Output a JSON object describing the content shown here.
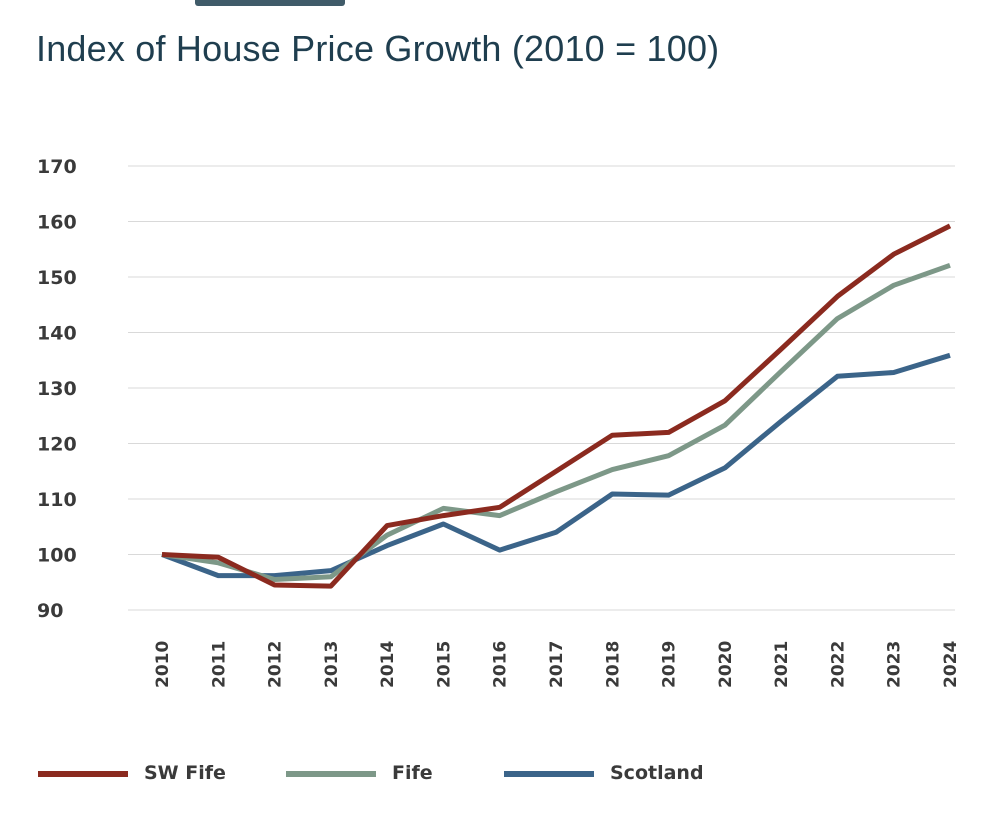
{
  "chart_data": {
    "type": "line",
    "title": "Index of House Price Growth (2010 = 100)",
    "x": [
      "2010",
      "2011",
      "2012",
      "2013",
      "2014",
      "2015",
      "2016",
      "2017",
      "2018",
      "2019",
      "2020",
      "2021",
      "2022",
      "2023",
      "2024"
    ],
    "ylim": [
      90,
      170
    ],
    "yticks": [
      "90",
      "100",
      "110",
      "120",
      "130",
      "140",
      "150",
      "160",
      "170"
    ],
    "grid": true,
    "legend_position": "bottom",
    "series": [
      {
        "name": "SW Fife",
        "color": "#8b2a1f",
        "values": [
          100,
          99.5,
          94.5,
          94.3,
          105.2,
          107,
          108.5,
          115,
          121.5,
          122,
          127.7,
          137,
          146.5,
          154.1,
          159.2
        ]
      },
      {
        "name": "Fife",
        "color": "#7d9888",
        "values": [
          100,
          98.5,
          95.5,
          96,
          103.5,
          108.3,
          107,
          111.3,
          115.3,
          117.8,
          123.3,
          133,
          142.5,
          148.5,
          152.1
        ]
      },
      {
        "name": "Scotland",
        "color": "#3b6489",
        "values": [
          100,
          96.2,
          96.2,
          97.1,
          101.6,
          105.5,
          100.8,
          104,
          110.9,
          110.7,
          115.6,
          124,
          132.1,
          132.8,
          135.9
        ]
      }
    ]
  }
}
